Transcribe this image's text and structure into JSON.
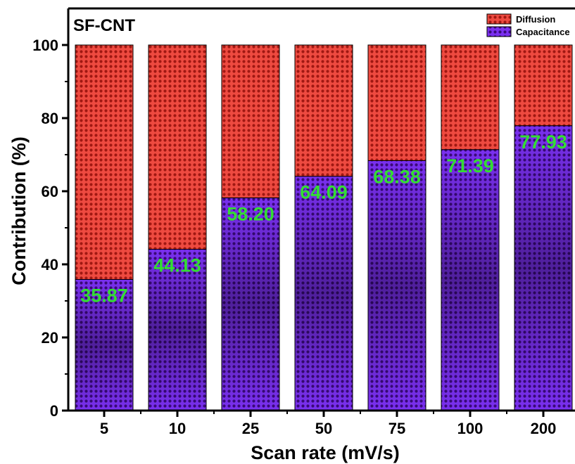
{
  "chart_data": {
    "type": "bar",
    "stacked": true,
    "title": "SF-CNT",
    "xlabel": "Scan rate (mV/s)",
    "ylabel": "Contribution (%)",
    "ylim": [
      0,
      100
    ],
    "yticks": [
      0,
      20,
      40,
      60,
      80,
      100
    ],
    "categories": [
      "5",
      "10",
      "25",
      "50",
      "75",
      "100",
      "200"
    ],
    "series": [
      {
        "name": "Capacitance",
        "values": [
          35.87,
          44.13,
          58.2,
          64.09,
          68.38,
          71.39,
          77.93
        ],
        "color": "#6a1ee0"
      },
      {
        "name": "Diffusion",
        "values": [
          64.13,
          55.87,
          41.8,
          35.91,
          31.62,
          28.61,
          22.07
        ],
        "color": "#e83a32"
      }
    ],
    "data_labels": [
      "35.87",
      "44.13",
      "58.20",
      "64.09",
      "68.38",
      "71.39",
      "77.93"
    ],
    "data_label_color": "#33dd33",
    "legend_position": "top-right",
    "grid": false
  }
}
